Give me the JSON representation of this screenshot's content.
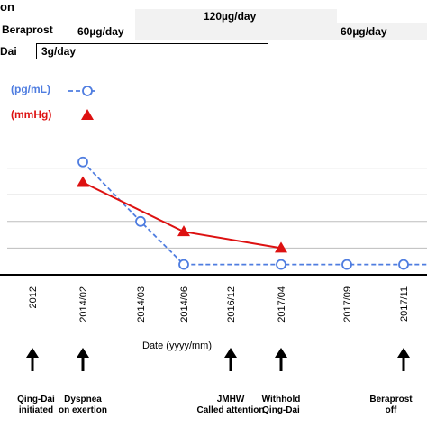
{
  "header": {
    "clipped_title": "on",
    "beraprost_label": "Beraprost",
    "qingdai_label": "Dai",
    "dose_60_early": "60µg/day",
    "dose_120": "120µg/day",
    "dose_60_late": "60µg/day",
    "dose_qingdai": "3g/day"
  },
  "colors": {
    "blue": "#4f7de0",
    "red": "#dd1111",
    "dose_bar": "#f2f2f2",
    "grid": "#bdbdbd",
    "axis": "#000000"
  },
  "chart_data": {
    "type": "line",
    "xlabel": "Date (yyyy/mm)",
    "categories": [
      "2012",
      "2014/02",
      "2014/03",
      "2014/06",
      "2016/12",
      "2017/04",
      "2017/09",
      "2017/11"
    ],
    "series": [
      {
        "name": "(pg/mL)",
        "color": "#4f7de0",
        "marker": "circle",
        "dashed": true,
        "values": [
          null,
          5.5,
          2.6,
          0.5,
          null,
          0.5,
          0.5,
          0.5
        ],
        "extends_right": true
      },
      {
        "name": "(mmHg)",
        "color": "#dd1111",
        "marker": "triangle",
        "dashed": false,
        "values": [
          null,
          4.5,
          null,
          2.1,
          null,
          1.3,
          null,
          null
        ]
      }
    ],
    "ylim": [
      0,
      6.5
    ],
    "grid_levels": [
      1.3,
      2.6,
      3.9,
      5.2
    ],
    "grid": true,
    "y_tick_labels_visible": false,
    "legend_position": "top-left"
  },
  "annotations": [
    {
      "category": "2012",
      "line1": "Qing-Dai",
      "line2": "initiated"
    },
    {
      "category": "2014/02",
      "line1": "Dyspnea",
      "line2": "on exertion"
    },
    {
      "category": "2016/12",
      "line1": "JMHW",
      "line2": "Called attention"
    },
    {
      "category": "2017/04",
      "line1": "Withhold",
      "line2": "Qing-Dai"
    },
    {
      "category": "2017/11",
      "line1": "Beraprost",
      "line2": "off"
    }
  ]
}
